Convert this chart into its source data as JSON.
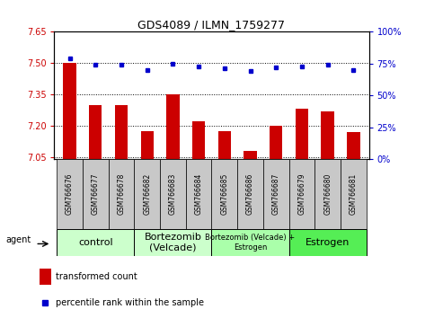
{
  "title": "GDS4089 / ILMN_1759277",
  "samples": [
    "GSM766676",
    "GSM766677",
    "GSM766678",
    "GSM766682",
    "GSM766683",
    "GSM766684",
    "GSM766685",
    "GSM766686",
    "GSM766687",
    "GSM766679",
    "GSM766680",
    "GSM766681"
  ],
  "transformed_counts": [
    7.5,
    7.3,
    7.3,
    7.175,
    7.35,
    7.22,
    7.175,
    7.08,
    7.2,
    7.28,
    7.27,
    7.17
  ],
  "percentile_ranks": [
    79,
    74,
    74,
    70,
    75,
    73,
    71,
    69,
    72,
    73,
    74,
    70
  ],
  "ylim_left": [
    7.04,
    7.65
  ],
  "ylim_right": [
    0,
    100
  ],
  "yticks_left": [
    7.05,
    7.2,
    7.35,
    7.5,
    7.65
  ],
  "yticks_right": [
    0,
    25,
    50,
    75,
    100
  ],
  "bar_color": "#cc0000",
  "dot_color": "#0000cc",
  "bar_bottom": 7.04,
  "groups": [
    {
      "label": "control",
      "start": 0,
      "end": 3,
      "color": "#ccffcc",
      "fontsize": 8
    },
    {
      "label": "Bortezomib\n(Velcade)",
      "start": 3,
      "end": 6,
      "color": "#ccffcc",
      "fontsize": 8
    },
    {
      "label": "Bortezomib (Velcade) +\nEstrogen",
      "start": 6,
      "end": 9,
      "color": "#aaffaa",
      "fontsize": 6
    },
    {
      "label": "Estrogen",
      "start": 9,
      "end": 12,
      "color": "#55ee55",
      "fontsize": 8
    }
  ],
  "legend_bar_label": "transformed count",
  "legend_dot_label": "percentile rank within the sample",
  "agent_label": "agent",
  "tick_color_left": "#cc0000",
  "tick_color_right": "#0000cc",
  "xtick_bg": "#c8c8c8"
}
